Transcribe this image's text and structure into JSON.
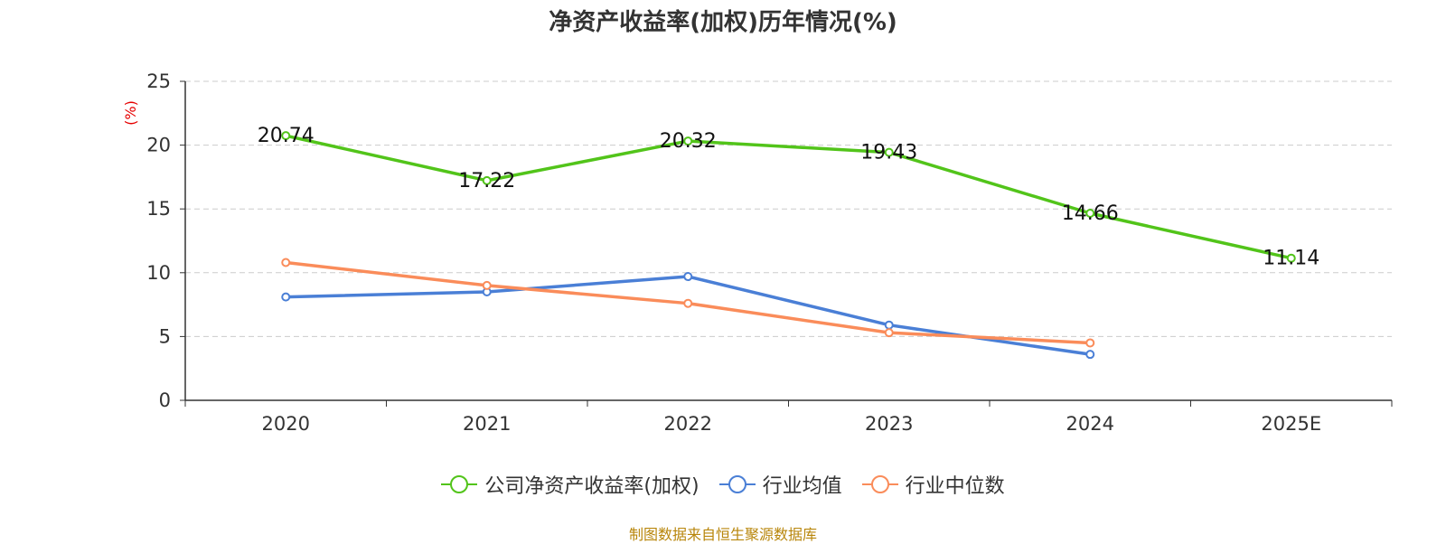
{
  "chart_data": {
    "type": "line",
    "title": "净资产收益率(加权)历年情况(%)",
    "ylabel": "(%)",
    "xlabel": "",
    "categories": [
      "2020",
      "2021",
      "2022",
      "2023",
      "2024",
      "2025E"
    ],
    "ylim": [
      0,
      25
    ],
    "yticks": [
      0,
      5,
      10,
      15,
      20,
      25
    ],
    "grid": true,
    "legend_position": "bottom",
    "series": [
      {
        "name": "公司净资产收益率(加权)",
        "color": "#52c41a",
        "values": [
          20.74,
          17.22,
          20.32,
          19.43,
          14.66,
          11.14
        ],
        "labels": [
          "20.74",
          "17.22",
          "20.32",
          "19.43",
          "14.66",
          "11.14"
        ]
      },
      {
        "name": "行业均值",
        "color": "#4a7fd6",
        "values": [
          8.1,
          8.5,
          9.7,
          5.9,
          3.6,
          null
        ]
      },
      {
        "name": "行业中位数",
        "color": "#fa8c5a",
        "values": [
          10.8,
          9.0,
          7.6,
          5.3,
          4.5,
          null
        ]
      }
    ]
  },
  "source": "制图数据来自恒生聚源数据库"
}
